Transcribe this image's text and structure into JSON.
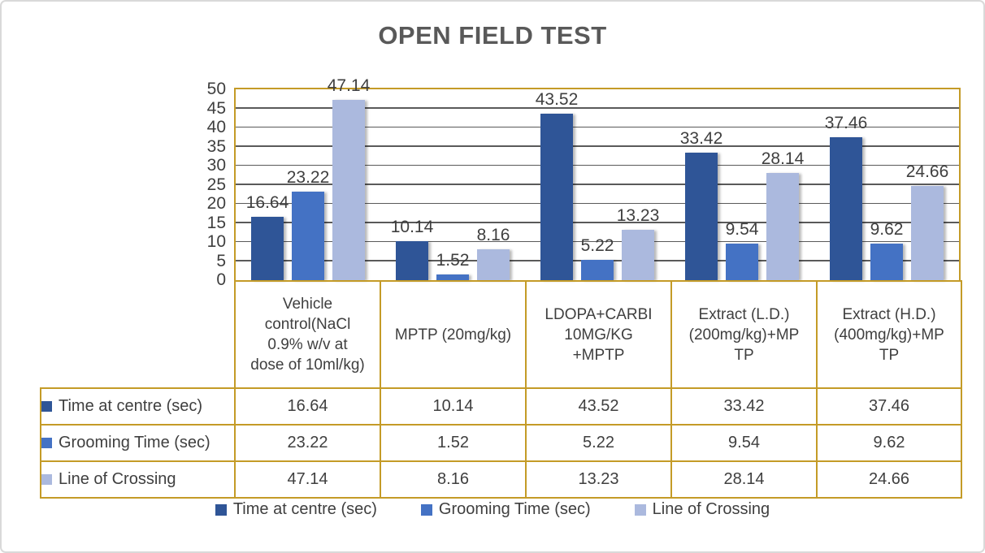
{
  "window": {
    "background": "#ffffff",
    "frame_border_color": "#d9d9d9"
  },
  "chart_data": {
    "type": "bar",
    "title": "OPEN FIELD TEST",
    "categories": [
      "Vehicle control(NaCl 0.9% w/v at dose of 10ml/kg)",
      "MPTP (20mg/kg)",
      "LDOPA+CARBI 10MG/KG +MPTP",
      "Extract (L.D.) (200mg/kg)+MPTP",
      "Extract (H.D.) (400mg/kg)+MPTP"
    ],
    "categories_display": [
      [
        "Vehicle",
        "control(NaCl",
        "0.9% w/v at",
        "dose of 10ml/kg)"
      ],
      [
        "MPTP (20mg/kg)"
      ],
      [
        "LDOPA+CARBI",
        "10MG/KG",
        "+MPTP"
      ],
      [
        "Extract (L.D.)",
        "(200mg/kg)+MP",
        "TP"
      ],
      [
        "Extract (H.D.)",
        "(400mg/kg)+MP",
        "TP"
      ]
    ],
    "series": [
      {
        "name": "Time at centre (sec)",
        "color": "#2F5597",
        "values": [
          16.64,
          10.14,
          43.52,
          33.42,
          37.46
        ]
      },
      {
        "name": "Grooming Time (sec)",
        "color": "#4472C4",
        "values": [
          23.22,
          1.52,
          5.22,
          9.54,
          9.62
        ]
      },
      {
        "name": "Line of Crossing",
        "color": "#ABB9DE",
        "values": [
          47.14,
          8.16,
          13.23,
          28.14,
          24.66
        ]
      }
    ],
    "y_axis": {
      "min": 0,
      "max": 50,
      "step": 5,
      "ticks": [
        "0",
        "5",
        "10",
        "15",
        "20",
        "25",
        "30",
        "35",
        "40",
        "45",
        "50"
      ]
    },
    "grid": true,
    "data_labels": true,
    "data_table_shown": true,
    "legend_position": "bottom",
    "colors": {
      "axis_and_table_border": "#C49B27",
      "gridline": "#5a5a5a",
      "title_text": "#595959",
      "label_text": "#3f3f3f"
    }
  }
}
